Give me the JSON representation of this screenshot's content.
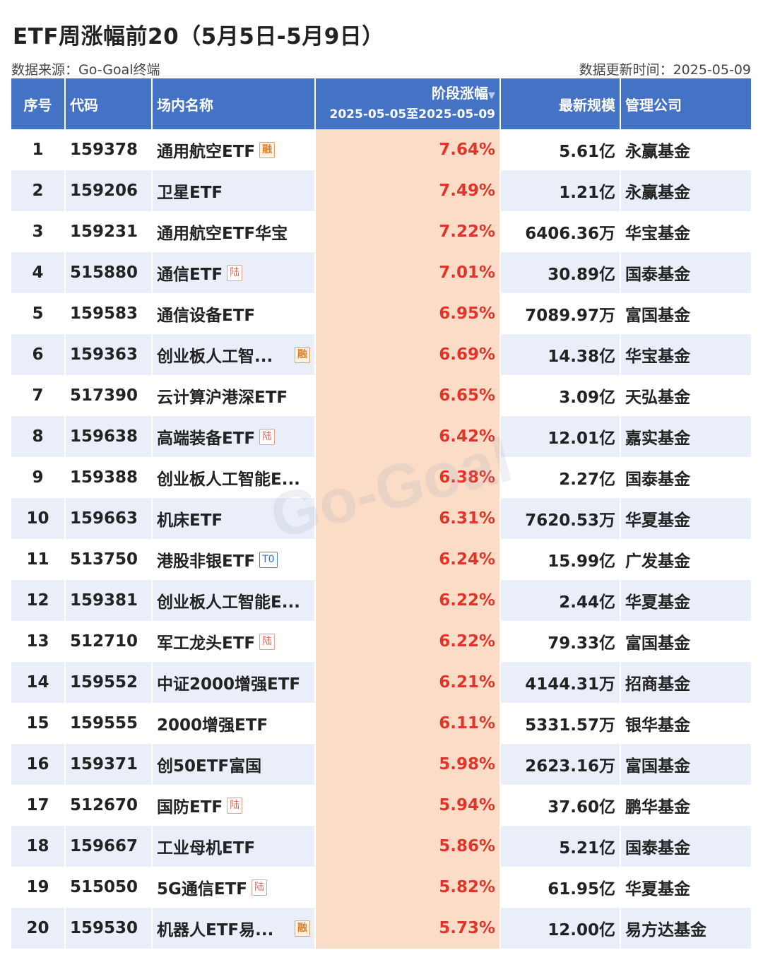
{
  "title": "ETF周涨幅前20（5月5日-5月9日）",
  "source_text": "数据来源：Go-Goal终端",
  "update_text": "数据更新时间：2025-05-09",
  "watermark": "Go-Goal",
  "headers": {
    "no": "序号",
    "code": "代码",
    "name": "场内名称",
    "change": "阶段涨幅",
    "change_range": "2025-05-05至2025-05-09",
    "scale": "最新规模",
    "company": "管理公司"
  },
  "rows": [
    {
      "no": "1",
      "code": "159378",
      "name": "通用航空ETF",
      "tag": "融",
      "change": "7.64%",
      "scale": "5.61亿",
      "company": "永赢基金"
    },
    {
      "no": "2",
      "code": "159206",
      "name": "卫星ETF",
      "tag": "",
      "change": "7.49%",
      "scale": "1.21亿",
      "company": "永赢基金"
    },
    {
      "no": "3",
      "code": "159231",
      "name": "通用航空ETF华宝",
      "tag": "",
      "change": "7.22%",
      "scale": "6406.36万",
      "company": "华宝基金"
    },
    {
      "no": "4",
      "code": "515880",
      "name": "通信ETF",
      "tag": "陆",
      "change": "7.01%",
      "scale": "30.89亿",
      "company": "国泰基金"
    },
    {
      "no": "5",
      "code": "159583",
      "name": "通信设备ETF",
      "tag": "",
      "change": "6.95%",
      "scale": "7089.97万",
      "company": "富国基金"
    },
    {
      "no": "6",
      "code": "159363",
      "name": "创业板人工智...",
      "tag": "融",
      "change": "6.69%",
      "scale": "14.38亿",
      "company": "华宝基金"
    },
    {
      "no": "7",
      "code": "517390",
      "name": "云计算沪港深ETF",
      "tag": "",
      "change": "6.65%",
      "scale": "3.09亿",
      "company": "天弘基金"
    },
    {
      "no": "8",
      "code": "159638",
      "name": "高端装备ETF",
      "tag": "陆",
      "change": "6.42%",
      "scale": "12.01亿",
      "company": "嘉实基金"
    },
    {
      "no": "9",
      "code": "159388",
      "name": "创业板人工智能E...",
      "tag": "",
      "change": "6.38%",
      "scale": "2.27亿",
      "company": "国泰基金"
    },
    {
      "no": "10",
      "code": "159663",
      "name": "机床ETF",
      "tag": "",
      "change": "6.31%",
      "scale": "7620.53万",
      "company": "华夏基金"
    },
    {
      "no": "11",
      "code": "513750",
      "name": "港股非银ETF",
      "tag": "T0",
      "change": "6.24%",
      "scale": "15.99亿",
      "company": "广发基金"
    },
    {
      "no": "12",
      "code": "159381",
      "name": "创业板人工智能E...",
      "tag": "",
      "change": "6.22%",
      "scale": "2.44亿",
      "company": "华夏基金"
    },
    {
      "no": "13",
      "code": "512710",
      "name": "军工龙头ETF",
      "tag": "陆",
      "change": "6.22%",
      "scale": "79.33亿",
      "company": "富国基金"
    },
    {
      "no": "14",
      "code": "159552",
      "name": "中证2000增强ETF",
      "tag": "",
      "change": "6.21%",
      "scale": "4144.31万",
      "company": "招商基金"
    },
    {
      "no": "15",
      "code": "159555",
      "name": "2000增强ETF",
      "tag": "",
      "change": "6.11%",
      "scale": "5331.57万",
      "company": "银华基金"
    },
    {
      "no": "16",
      "code": "159371",
      "name": "创50ETF富国",
      "tag": "",
      "change": "5.98%",
      "scale": "2623.16万",
      "company": "富国基金"
    },
    {
      "no": "17",
      "code": "512670",
      "name": "国防ETF",
      "tag": "陆",
      "change": "5.94%",
      "scale": "37.60亿",
      "company": "鹏华基金"
    },
    {
      "no": "18",
      "code": "159667",
      "name": "工业母机ETF",
      "tag": "",
      "change": "5.86%",
      "scale": "5.21亿",
      "company": "国泰基金"
    },
    {
      "no": "19",
      "code": "515050",
      "name": "5G通信ETF",
      "tag": "陆",
      "change": "5.82%",
      "scale": "61.95亿",
      "company": "华夏基金"
    },
    {
      "no": "20",
      "code": "159530",
      "name": "机器人ETF易...",
      "tag": "融",
      "change": "5.73%",
      "scale": "12.00亿",
      "company": "易方达基金"
    }
  ]
}
